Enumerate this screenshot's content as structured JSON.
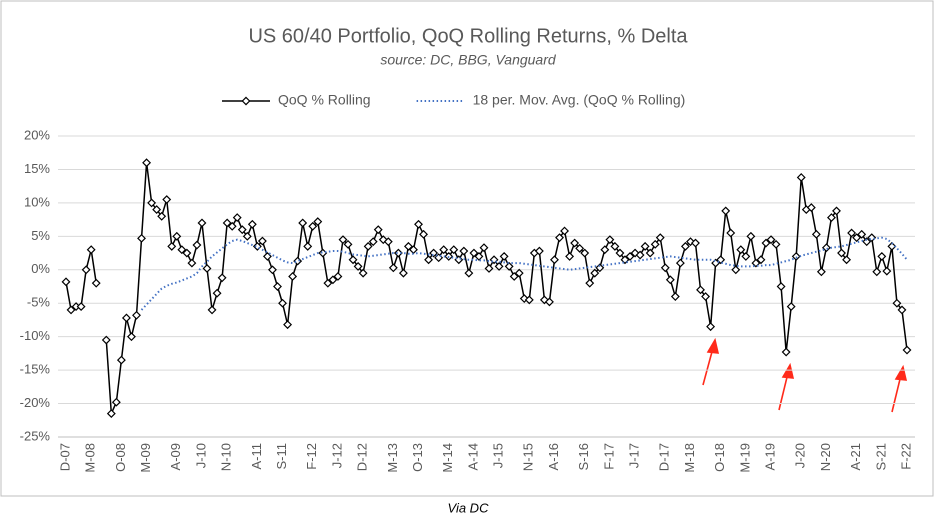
{
  "chart_data": {
    "type": "line",
    "title": "US 60/40 Portfolio, QoQ Rolling Returns, % Delta",
    "subtitle": "source: DC, BBG, Vanguard",
    "footer": "Via DC",
    "categories": [
      "D-07",
      null,
      null,
      null,
      null,
      "M-08",
      null,
      null,
      null,
      null,
      null,
      "O-08",
      null,
      null,
      null,
      null,
      "M-09",
      null,
      null,
      null,
      null,
      null,
      "A-09",
      null,
      null,
      null,
      null,
      "J-10",
      null,
      null,
      null,
      null,
      "N-10",
      null,
      null,
      null,
      null,
      null,
      "A-11",
      null,
      null,
      null,
      null,
      "S-11",
      null,
      null,
      null,
      null,
      null,
      "F-12",
      null,
      null,
      null,
      null,
      "J-12",
      null,
      null,
      null,
      null,
      "D-12",
      null,
      null,
      null,
      null,
      null,
      "M-13",
      null,
      null,
      null,
      null,
      "O-13",
      null,
      null,
      null,
      null,
      null,
      "M-14",
      null,
      null,
      null,
      null,
      "A-14",
      null,
      null,
      null,
      null,
      "J-15",
      null,
      null,
      null,
      null,
      null,
      "N-15",
      null,
      null,
      null,
      null,
      "A-16",
      null,
      null,
      null,
      null,
      null,
      "S-16",
      null,
      null,
      null,
      null,
      "F-17",
      null,
      null,
      null,
      null,
      "J-17",
      null,
      null,
      null,
      null,
      null,
      "D-17",
      null,
      null,
      null,
      null,
      "M-18",
      null,
      null,
      null,
      null,
      null,
      "O-18",
      null,
      null,
      null,
      null,
      "M-19",
      null,
      null,
      null,
      null,
      "A-19",
      null,
      null,
      null,
      null,
      null,
      "J-20",
      null,
      null,
      null,
      null,
      "N-20",
      null,
      null,
      null,
      null,
      null,
      "A-21",
      null,
      null,
      null,
      null,
      "S-21",
      null,
      null,
      null,
      null,
      "F-22"
    ],
    "series": [
      {
        "name": "QoQ % Rolling",
        "color": "#000000",
        "style": "solid",
        "marker": "diamond",
        "values": [
          -1.8,
          -6,
          -5.5,
          -5.5,
          0,
          3,
          -2,
          null,
          -10.5,
          -21.5,
          -19.8,
          -13.5,
          -7.2,
          -10,
          -6.8,
          4.7,
          16,
          10,
          9,
          8,
          10.5,
          3.5,
          5,
          3,
          2.5,
          1,
          3.7,
          7,
          0.2,
          -6,
          -3.5,
          -1.2,
          7,
          6.5,
          7.8,
          6,
          5,
          6.8,
          3.5,
          4.3,
          2,
          0,
          -2.5,
          -5,
          -8.2,
          -1,
          1.3,
          7,
          3.5,
          6.5,
          7.2,
          2.5,
          -2,
          -1.5,
          -1,
          4.5,
          3.8,
          1.5,
          0.5,
          -0.5,
          3.5,
          4.2,
          6,
          4.5,
          4.2,
          0.3,
          2.5,
          -0.5,
          3.5,
          3,
          6.8,
          5.3,
          1.5,
          2.5,
          1.8,
          3,
          2,
          3,
          1.5,
          2.8,
          -0.5,
          2.5,
          2,
          3.3,
          0.2,
          1.5,
          0.5,
          2,
          0.5,
          -1,
          -0.5,
          -4.3,
          -4.5,
          2.5,
          2.8,
          -4.5,
          -4.8,
          1.5,
          4.8,
          5.8,
          2,
          4,
          3.2,
          2.5,
          -2,
          -0.5,
          0.3,
          3,
          4.5,
          3.5,
          2.5,
          1.5,
          2,
          2.5,
          2.2,
          3.5,
          2.5,
          3.8,
          4.8,
          0.3,
          -1.5,
          -4,
          1,
          3.5,
          4.2,
          4,
          -3,
          -4,
          -8.5,
          1,
          1.5,
          8.8,
          5.5,
          0,
          3,
          2,
          5,
          1,
          1.5,
          4,
          4.5,
          3.8,
          -2.5,
          -12.3,
          -5.5,
          2,
          13.8,
          9,
          9.3,
          5.3,
          -0.3,
          3.3,
          7.8,
          8.8,
          2.5,
          1.5,
          5.5,
          4.8,
          5.3,
          4.2,
          4.8,
          -0.3,
          2,
          -0.2,
          3.5,
          -5,
          -6,
          -12
        ]
      },
      {
        "name": "18 per. Mov. Avg. (QoQ % Rolling)",
        "color": "#4472c4",
        "style": "dotted",
        "values": [
          null,
          null,
          null,
          null,
          null,
          null,
          null,
          null,
          null,
          null,
          null,
          null,
          null,
          null,
          null,
          -6,
          -5.2,
          -4.4,
          -3.6,
          -2.8,
          -2.4,
          -2.1,
          -1.9,
          -1.6,
          -1.3,
          -1,
          -0.5,
          0.5,
          1.2,
          2,
          2.6,
          3.2,
          3.8,
          4.3,
          4.5,
          4.3,
          4,
          3.7,
          3.4,
          3,
          2.6,
          2.2,
          1.8,
          1.4,
          1.1,
          1,
          1.3,
          1.6,
          1.9,
          2.2,
          2.5,
          2.6,
          2.7,
          2.8,
          2.8,
          2.7,
          2.5,
          2.3,
          2.2,
          2.1,
          2,
          2.1,
          2.2,
          2.3,
          2.4,
          2.5,
          2.5,
          2.5,
          2.4,
          2.4,
          2.5,
          2.4,
          2.3,
          2.2,
          2.1,
          2,
          1.9,
          1.8,
          1.7,
          1.6,
          1.5,
          1.5,
          1.4,
          1.4,
          1.3,
          1.2,
          1.2,
          1.1,
          1,
          1,
          1,
          0.9,
          0.8,
          0.7,
          0.6,
          0.5,
          0.4,
          0.3,
          0.2,
          0.1,
          0,
          0.1,
          0.2,
          0.3,
          0.4,
          0.5,
          0.6,
          0.7,
          0.8,
          0.9,
          1,
          1.1,
          1.2,
          1.3,
          1.4,
          1.5,
          1.6,
          1.7,
          1.8,
          1.9,
          2,
          1.9,
          1.8,
          1.7,
          1.6,
          1.5,
          1.5,
          1.5,
          1.5,
          1.3,
          1.1,
          0.9,
          0.7,
          0.6,
          0.5,
          0.5,
          0.5,
          0.6,
          0.6,
          0.7,
          0.7,
          0.9,
          1.1,
          1.3,
          1.5,
          1.8,
          2.1,
          2.3,
          2.5,
          2.7,
          2.9,
          3.1,
          3.3,
          3.4,
          3.5,
          3.7,
          3.9,
          4.1,
          4.3,
          4.5,
          4.6,
          4.7,
          4.8,
          4.6,
          4,
          3.2,
          2.4,
          1.5
        ]
      }
    ],
    "ylim": [
      -25,
      20
    ],
    "yticks": [
      {
        "value": -25,
        "label": "-25%"
      },
      {
        "value": -20,
        "label": "-20%"
      },
      {
        "value": -15,
        "label": "-15%"
      },
      {
        "value": -10,
        "label": "-10%"
      },
      {
        "value": -5,
        "label": "-5%"
      },
      {
        "value": 0,
        "label": "0%"
      },
      {
        "value": 5,
        "label": "5%"
      },
      {
        "value": 10,
        "label": "10%"
      },
      {
        "value": 15,
        "label": "15%"
      },
      {
        "value": 20,
        "label": "20%"
      }
    ],
    "grid": true,
    "legend": "top"
  }
}
